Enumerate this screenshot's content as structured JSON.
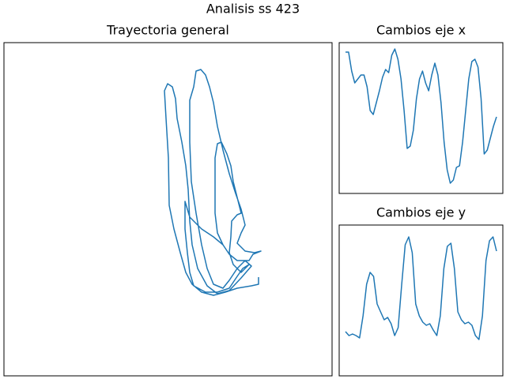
{
  "title": "Analisis ss 423",
  "chart_data": [
    {
      "type": "line",
      "title": "Trayectoria general",
      "color": "#1f77b4",
      "xlim": [
        0,
        415
      ],
      "ylim": [
        0,
        422
      ],
      "x": [
        322,
        322,
        313,
        295,
        280,
        265,
        250,
        238,
        230,
        223,
        215,
        209,
        208,
        205,
        203,
        207,
        213,
        217,
        219,
        225,
        230,
        233,
        235,
        238,
        245,
        257,
        270,
        285,
        300,
        313,
        305,
        295,
        285,
        277,
        265,
        257,
        250,
        243,
        237,
        235,
        235,
        240,
        243,
        249,
        255,
        260,
        265,
        270,
        277,
        285,
        293,
        300,
        305,
        300,
        295,
        305,
        317,
        325,
        315,
        310,
        295,
        285,
        277,
        270,
        267,
        267,
        267,
        270,
        275,
        282,
        287,
        290,
        295,
        300,
        295,
        288,
        287,
        285,
        290,
        300,
        310,
        302,
        295,
        285,
        270,
        255,
        240,
        235,
        232,
        229,
        229,
        235,
        250,
        265,
        277
      ],
      "values": [
        125,
        116,
        114,
        111,
        106,
        102,
        106,
        116,
        131,
        156,
        186,
        216,
        276,
        326,
        361,
        370,
        366,
        351,
        326,
        296,
        266,
        236,
        196,
        166,
        136,
        114,
        104,
        108,
        124,
        139,
        146,
        136,
        121,
        111,
        116,
        136,
        166,
        206,
        246,
        296,
        349,
        366,
        386,
        388,
        381,
        366,
        346,
        316,
        286,
        256,
        231,
        211,
        191,
        181,
        168,
        158,
        156,
        158,
        154,
        146,
        146,
        154,
        166,
        181,
        206,
        246,
        276,
        294,
        296,
        281,
        266,
        246,
        226,
        206,
        204,
        196,
        176,
        156,
        141,
        131,
        141,
        136,
        126,
        111,
        106,
        106,
        114,
        131,
        156,
        186,
        221,
        201,
        186,
        176,
        166
      ]
    },
    {
      "type": "line",
      "title": "Cambios eje x",
      "color": "#1f77b4",
      "ylim": [
        0,
        191
      ],
      "values": [
        179,
        179,
        155,
        140,
        145,
        150,
        150,
        135,
        105,
        100,
        115,
        130,
        147,
        157,
        153,
        175,
        183,
        170,
        145,
        105,
        57,
        60,
        80,
        120,
        145,
        155,
        140,
        130,
        150,
        165,
        150,
        115,
        65,
        30,
        13,
        17,
        33,
        35,
        65,
        105,
        145,
        167,
        170,
        160,
        120,
        50,
        55,
        70,
        85,
        97
      ]
    },
    {
      "type": "line",
      "title": "Cambios eje y",
      "color": "#1f77b4",
      "ylim": [
        0,
        191
      ],
      "values": [
        56,
        51,
        53,
        51,
        48,
        76,
        116,
        131,
        126,
        91,
        81,
        71,
        74,
        66,
        51,
        61,
        116,
        166,
        176,
        156,
        91,
        76,
        68,
        64,
        66,
        58,
        51,
        76,
        136,
        164,
        168,
        136,
        81,
        71,
        66,
        68,
        64,
        51,
        46,
        76,
        146,
        171,
        176,
        158
      ]
    }
  ]
}
